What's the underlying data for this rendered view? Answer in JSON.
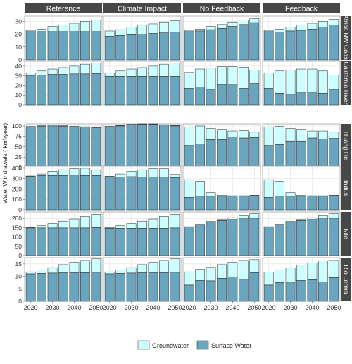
{
  "chart_data": {
    "type": "bar",
    "stacked": true,
    "ylabel": "Water Withdrawals ( km³/year)",
    "x": [
      2020,
      2025,
      2030,
      2035,
      2040,
      2045,
      2050
    ],
    "x_ticks": [
      "2020",
      "2030",
      "2040",
      "2050"
    ],
    "column_headers": [
      "Reference",
      "Climate Impact",
      "No Feedback",
      "Feedback"
    ],
    "legend": {
      "position": "bottom",
      "items": [
        {
          "name": "Groundwater",
          "color": "#ccffff"
        },
        {
          "name": "Surface Water",
          "color": "#6aa5c0"
        }
      ]
    },
    "colors": {
      "groundwater": "#ccffff",
      "surface": "#6aa5c0",
      "strip": "#474747",
      "grid": "#dcdcdc",
      "panel_border": "#999999"
    },
    "rows": [
      {
        "name": "Africa NW Coast",
        "ylim": [
          0,
          34
        ],
        "yticks": [
          0,
          10,
          20,
          30
        ],
        "panels": [
          {
            "surface": [
              22,
              22,
              22,
              22,
              22,
              22,
              22
            ],
            "total": [
              23,
              24,
              26,
              27,
              28.5,
              30,
              31
            ]
          },
          {
            "surface": [
              18.5,
              19,
              19.5,
              20,
              20.5,
              21,
              21.5
            ],
            "total": [
              22.5,
              23.5,
              25.5,
              27,
              28,
              29.5,
              30.5
            ]
          },
          {
            "surface": [
              22,
              22.5,
              23.5,
              24.5,
              26,
              27.5,
              29
            ],
            "total": [
              23,
              24,
              26,
              27.5,
              29.5,
              31,
              32
            ]
          },
          {
            "surface": [
              22,
              21.5,
              22.5,
              23,
              24,
              25.5,
              27
            ],
            "total": [
              23,
              24,
              25.5,
              27,
              28.5,
              30,
              31.5
            ]
          }
        ]
      },
      {
        "name": "California River",
        "ylim": [
          0,
          45
        ],
        "yticks": [
          0,
          10,
          20,
          30,
          40
        ],
        "panels": [
          {
            "surface": [
              30,
              31,
              31.5,
              31.5,
              32,
              32,
              32.5
            ],
            "total": [
              33,
              35,
              37,
              38.5,
              40,
              42,
              43
            ]
          },
          {
            "surface": [
              29.5,
              29.5,
              29.5,
              29.5,
              29.5,
              29.5,
              29.5
            ],
            "total": [
              33,
              35,
              37,
              38.5,
              40,
              42,
              43
            ]
          },
          {
            "surface": [
              17,
              18.5,
              16,
              21,
              20.5,
              17,
              22
            ],
            "total": [
              33.5,
              37,
              38,
              39.5,
              39.5,
              39,
              36
            ]
          },
          {
            "surface": [
              17,
              12,
              11,
              12.5,
              12.5,
              12,
              16
            ],
            "total": [
              33,
              35,
              36,
              37,
              37,
              35,
              31
            ]
          }
        ]
      },
      {
        "name": "Huang He",
        "ylim": [
          0,
          105
        ],
        "yticks": [
          0,
          25,
          50,
          75,
          100
        ],
        "panels": [
          {
            "surface": [
              97,
              99,
              100,
              99,
              98,
              97,
              96
            ],
            "total": [
              99,
              101,
              102,
              101,
              99,
              98,
              97
            ]
          },
          {
            "surface": [
              98,
              100,
              103,
              104,
              104,
              102,
              100
            ],
            "total": [
              99,
              101,
              104,
              105,
              105,
              103,
              101
            ]
          },
          {
            "surface": [
              53,
              57,
              67,
              67,
              74,
              71,
              72
            ],
            "total": [
              97,
              100,
              94,
              92,
              88,
              89,
              85
            ]
          },
          {
            "surface": [
              53,
              55,
              64,
              64,
              71,
              69,
              70
            ],
            "total": [
              97,
              99,
              94,
              92,
              88,
              88,
              85
            ]
          }
        ]
      },
      {
        "name": "Indus",
        "ylim": [
          0,
          420
        ],
        "yticks": [
          0,
          100,
          200,
          300,
          400
        ],
        "panels": [
          {
            "surface": [
              320,
              328,
              330,
              330,
              333,
              330,
              330
            ],
            "total": [
              325,
              345,
              370,
              385,
              395,
              400,
              385
            ]
          },
          {
            "surface": [
              318,
              315,
              318,
              315,
              315,
              315,
              310
            ],
            "total": [
              322,
              345,
              370,
              385,
              395,
              395,
              340
            ]
          },
          {
            "surface": [
              120,
              130,
              130,
              130,
              135,
              130,
              135
            ],
            "total": [
              290,
              275,
              165,
              140,
              135,
              135,
              140
            ]
          },
          {
            "surface": [
              120,
              130,
              130,
              130,
              135,
              130,
              135
            ],
            "total": [
              290,
              275,
              165,
              140,
              135,
              135,
              140
            ]
          }
        ]
      },
      {
        "name": "Nile",
        "ylim": [
          0,
          235
        ],
        "yticks": [
          0,
          50,
          100,
          150,
          200
        ],
        "panels": [
          {
            "surface": [
              148,
              148,
              148,
              148,
              148,
              148,
              150
            ],
            "total": [
              150,
              160,
              172,
              185,
              197,
              210,
              222
            ]
          },
          {
            "surface": [
              146,
              146,
              146,
              146,
              146,
              146,
              148
            ],
            "total": [
              150,
              160,
              172,
              185,
              197,
              210,
              222
            ]
          },
          {
            "surface": [
              153,
              166,
              180,
              188,
              194,
              198,
              201
            ],
            "total": [
              155,
              168,
              184,
              194,
              204,
              214,
              225
            ]
          },
          {
            "surface": [
              153,
              166,
              180,
              188,
              194,
              198,
              201
            ],
            "total": [
              155,
              168,
              184,
              194,
              204,
              214,
              225
            ]
          }
        ]
      },
      {
        "name": "Rio Lerma",
        "ylim": [
          0,
          17.5
        ],
        "yticks": [
          0,
          5,
          10,
          15
        ],
        "panels": [
          {
            "surface": [
              11,
              11.2,
              11.3,
              11.4,
              11.4,
              11.5,
              11.6
            ],
            "total": [
              11.8,
              12.5,
              13.5,
              14.7,
              15.6,
              16.4,
              17
            ]
          },
          {
            "surface": [
              11,
              11.2,
              11.3,
              11.4,
              11.4,
              11.5,
              11.6
            ],
            "total": [
              11.8,
              12.5,
              13.5,
              14.7,
              15.6,
              16.4,
              17
            ]
          },
          {
            "surface": [
              6.5,
              8.3,
              8.2,
              9.2,
              9.8,
              8.8,
              11.5
            ],
            "total": [
              11.8,
              12.8,
              13.6,
              14.7,
              15.6,
              16.4,
              16.7
            ]
          },
          {
            "surface": [
              6.5,
              7.5,
              7.4,
              8.3,
              8.9,
              7.8,
              9.5
            ],
            "total": [
              11.7,
              12.5,
              13.4,
              14.6,
              15.4,
              16.2,
              16.4
            ]
          }
        ]
      }
    ]
  }
}
